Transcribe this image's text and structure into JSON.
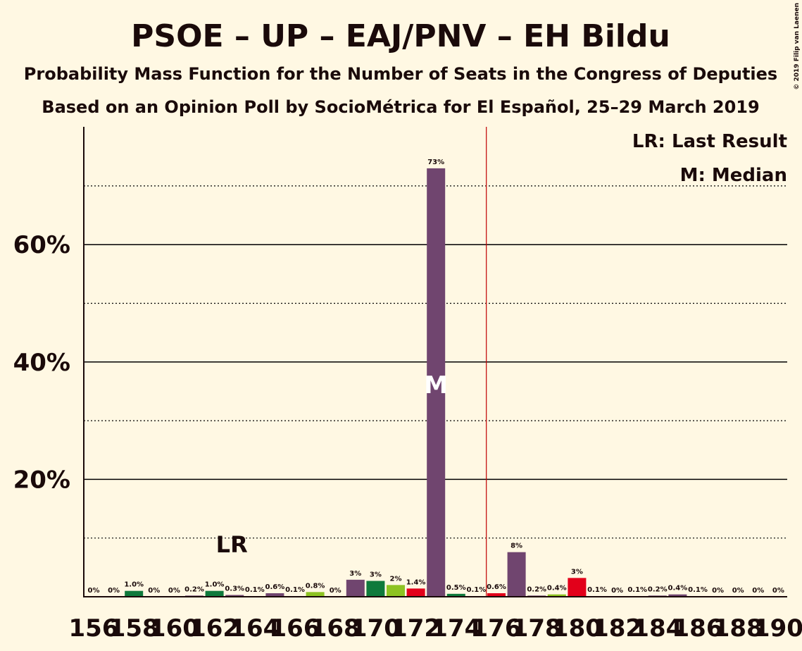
{
  "chart_data": {
    "type": "bar",
    "title": "PSOE – UP – EAJ/PNV – EH Bildu",
    "subtitle": "Probability Mass Function for the Number of Seats in the Congress of Deputies",
    "subtitle2": "Based on an Opinion Poll by SocioMétrica for El Español, 25–29 March 2019",
    "copyright": "© 2019 Filip van Laenen",
    "legend": {
      "last_result": "LR: Last Result",
      "median": "M: Median",
      "placement": "top-right"
    },
    "x": [
      156,
      157,
      158,
      159,
      160,
      161,
      162,
      163,
      164,
      165,
      166,
      167,
      168,
      169,
      170,
      171,
      172,
      173,
      174,
      175,
      176,
      177,
      178,
      179,
      180,
      181,
      182,
      183,
      184,
      185,
      186,
      187,
      188,
      189,
      190
    ],
    "x_tick_labels": [
      "156",
      "158",
      "160",
      "162",
      "164",
      "166",
      "168",
      "170",
      "172",
      "174",
      "176",
      "178",
      "180",
      "182",
      "184",
      "186",
      "188",
      "190"
    ],
    "values": [
      0,
      0,
      1.0,
      0,
      0,
      0.2,
      1.0,
      0.3,
      0.1,
      0.6,
      0.1,
      0.8,
      0,
      3,
      3,
      2,
      1.4,
      73,
      0.5,
      0.1,
      0.6,
      8,
      0.2,
      0.4,
      3,
      0.1,
      0,
      0.1,
      0.2,
      0.4,
      0.1,
      0,
      0,
      0,
      0
    ],
    "plot_values": [
      0,
      0,
      1.0,
      0,
      0,
      0.2,
      1.0,
      0.3,
      0.1,
      0.6,
      0.1,
      0.8,
      0,
      2.9,
      2.7,
      2.0,
      1.4,
      73,
      0.5,
      0.1,
      0.6,
      7.6,
      0.2,
      0.4,
      3.2,
      0.1,
      0,
      0.1,
      0.2,
      0.4,
      0.1,
      0,
      0,
      0,
      0
    ],
    "data_labels": [
      "0%",
      "0%",
      "1.0%",
      "0%",
      "0%",
      "0.2%",
      "1.0%",
      "0.3%",
      "0.1%",
      "0.6%",
      "0.1%",
      "0.8%",
      "0%",
      "3%",
      "3%",
      "2%",
      "1.4%",
      "73%",
      "0.5%",
      "0.1%",
      "0.6%",
      "8%",
      "0.2%",
      "0.4%",
      "3%",
      "0.1%",
      "0%",
      "0.1%",
      "0.2%",
      "0.4%",
      "0.1%",
      "0%",
      "0%",
      "0%",
      "0%"
    ],
    "bar_colors": [
      "#70456F",
      "#70456F",
      "#0E7A3C",
      "#70456F",
      "#70456F",
      "#70456F",
      "#0E7A3C",
      "#70456F",
      "#70456F",
      "#70456F",
      "#70456F",
      "#8DC322",
      "#70456F",
      "#70456F",
      "#0E7A3C",
      "#8DC322",
      "#E2001A",
      "#70456F",
      "#0E7A3C",
      "#70456F",
      "#E2001A",
      "#70456F",
      "#70456F",
      "#8DC322",
      "#E2001A",
      "#70456F",
      "#70456F",
      "#70456F",
      "#70456F",
      "#70456F",
      "#70456F",
      "#70456F",
      "#70456F",
      "#70456F",
      "#70456F"
    ],
    "y_ticks": [
      "20%",
      "40%",
      "60%"
    ],
    "ylim": [
      0,
      80
    ],
    "grid": "solid at 20% steps, dotted at 10% steps",
    "last_result_seat": 163,
    "last_result_label": "LR",
    "median_seat": 173,
    "median_label": "M",
    "majority_seat": 176,
    "colors": {
      "background": "#FFF8E3",
      "text": "#1a0a0a",
      "majority_line": "#C00000"
    }
  }
}
